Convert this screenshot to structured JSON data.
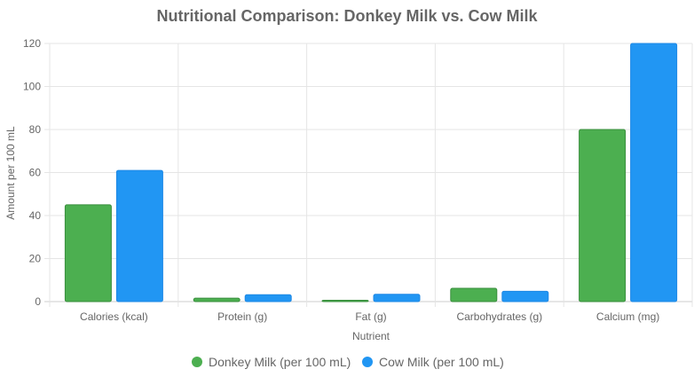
{
  "chart_data": {
    "type": "bar",
    "title": "Nutritional Comparison: Donkey Milk vs. Cow Milk",
    "xlabel": "Nutrient",
    "ylabel": "Amount per 100 mL",
    "ylim": [
      0,
      120
    ],
    "yticks": [
      0,
      20,
      40,
      60,
      80,
      100,
      120
    ],
    "categories": [
      "Calories (kcal)",
      "Protein (g)",
      "Fat (g)",
      "Carbohydrates (g)",
      "Calcium (mg)"
    ],
    "series": [
      {
        "name": "Donkey Milk (per 100 mL)",
        "color": "#4caf50",
        "border": "#388e3c",
        "values": [
          45,
          1.6,
          0.6,
          6.2,
          80
        ]
      },
      {
        "name": "Cow Milk (per 100 mL)",
        "color": "#2196f3",
        "border": "#1e88e5",
        "values": [
          61,
          3.2,
          3.4,
          4.8,
          120
        ]
      }
    ],
    "legend_position": "bottom",
    "grid": true
  }
}
